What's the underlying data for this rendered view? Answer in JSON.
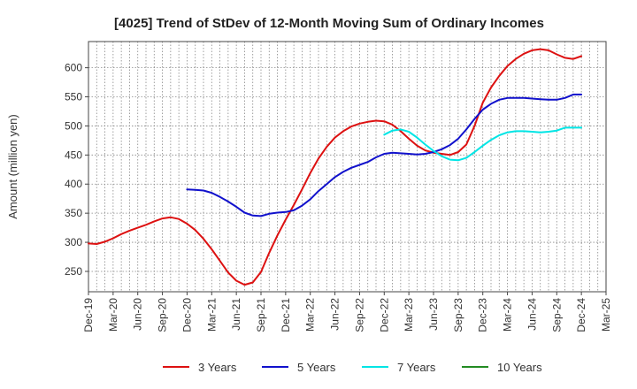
{
  "chart_data": {
    "type": "line",
    "title": "[4025]  Trend of StDev of 12-Month Moving Sum of Ordinary Incomes",
    "ylabel": "Amount (million yen)",
    "xlabel": "",
    "ylim": [
      215,
      645
    ],
    "yticks": [
      250,
      300,
      350,
      400,
      450,
      500,
      550,
      600
    ],
    "grid": true,
    "legend_position": "bottom",
    "x_tick_labels": [
      "Dec-19",
      "Mar-20",
      "Jun-20",
      "Sep-20",
      "Dec-20",
      "Mar-21",
      "Jun-21",
      "Sep-21",
      "Dec-21",
      "Mar-22",
      "Jun-22",
      "Sep-22",
      "Dec-22",
      "Mar-23",
      "Jun-23",
      "Sep-23",
      "Dec-23",
      "Mar-24",
      "Jun-24",
      "Sep-24",
      "Dec-24",
      "Mar-25"
    ],
    "x_range_months": [
      0,
      63
    ],
    "series": [
      {
        "name": "3 Years",
        "color": "#dd1111",
        "x": [
          0,
          1,
          2,
          3,
          4,
          5,
          6,
          7,
          8,
          9,
          10,
          11,
          12,
          13,
          14,
          15,
          16,
          17,
          18,
          19,
          20,
          21,
          22,
          23,
          24,
          25,
          26,
          27,
          28,
          29,
          30,
          31,
          32,
          33,
          34,
          35,
          36,
          37,
          38,
          39,
          40,
          41,
          42,
          43,
          44,
          45,
          46,
          47,
          48,
          49,
          50,
          51,
          52,
          53,
          54,
          55,
          56,
          57,
          58,
          59,
          60
        ],
        "values": [
          298,
          297,
          301,
          307,
          314,
          320,
          325,
          330,
          336,
          341,
          343,
          340,
          332,
          321,
          306,
          288,
          268,
          248,
          234,
          227,
          231,
          249,
          282,
          312,
          339,
          364,
          391,
          419,
          444,
          464,
          480,
          491,
          499,
          504,
          507,
          509,
          508,
          502,
          491,
          478,
          466,
          458,
          454,
          452,
          450,
          455,
          468,
          500,
          540,
          566,
          586,
          603,
          615,
          624,
          630,
          632,
          630,
          623,
          617,
          615,
          620
        ]
      },
      {
        "name": "5 Years",
        "color": "#1111cc",
        "x": [
          12,
          13,
          14,
          15,
          16,
          17,
          18,
          19,
          20,
          21,
          22,
          23,
          24,
          25,
          26,
          27,
          28,
          29,
          30,
          31,
          32,
          33,
          34,
          35,
          36,
          37,
          38,
          39,
          40,
          41,
          42,
          43,
          44,
          45,
          46,
          47,
          48,
          49,
          50,
          51,
          52,
          53,
          54,
          55,
          56,
          57,
          58,
          59,
          60
        ],
        "values": [
          391,
          390,
          389,
          385,
          378,
          370,
          361,
          351,
          346,
          345,
          349,
          351,
          352,
          355,
          363,
          374,
          388,
          400,
          412,
          421,
          428,
          433,
          438,
          446,
          452,
          454,
          453,
          452,
          451,
          452,
          455,
          460,
          467,
          478,
          494,
          512,
          528,
          538,
          545,
          548,
          548,
          548,
          547,
          546,
          545,
          545,
          548,
          554,
          554
        ]
      },
      {
        "name": "7 Years",
        "color": "#00e5e5",
        "x": [
          36,
          37,
          38,
          39,
          40,
          41,
          42,
          43,
          44,
          45,
          46,
          47,
          48,
          49,
          50,
          51,
          52,
          53,
          54,
          55,
          56,
          57,
          58,
          59,
          60
        ],
        "values": [
          485,
          492,
          494,
          490,
          480,
          468,
          457,
          448,
          442,
          441,
          445,
          455,
          466,
          476,
          484,
          489,
          491,
          491,
          490,
          489,
          490,
          492,
          497,
          497,
          497
        ]
      },
      {
        "name": "10 Years",
        "color": "#228b22",
        "x": [],
        "values": []
      }
    ]
  }
}
